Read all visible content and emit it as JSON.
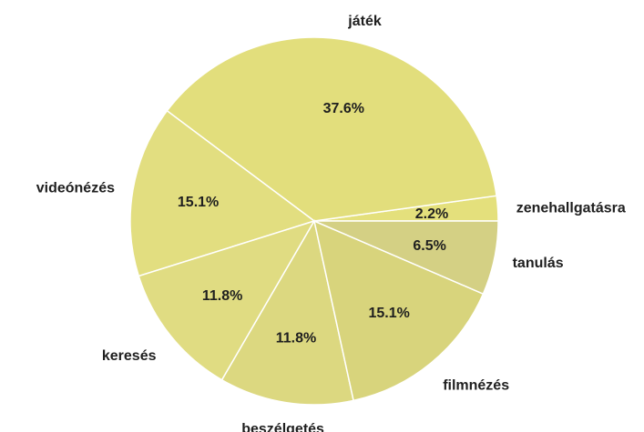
{
  "chart_data": {
    "type": "pie",
    "title": "",
    "start_angle_deg": 90,
    "direction": "clockwise",
    "slice_border_color": "#ffffff",
    "slices": [
      {
        "label": "zenehallgatásra",
        "value": 2.2,
        "percent_label": "2.2%",
        "color": "#e4e07c"
      },
      {
        "label": "játék",
        "value": 37.6,
        "percent_label": "37.6%",
        "color": "#e2de7c"
      },
      {
        "label": "videónézés",
        "value": 15.1,
        "percent_label": "15.1%",
        "color": "#e2de80"
      },
      {
        "label": "keresés",
        "value": 11.8,
        "percent_label": "11.8%",
        "color": "#e0dc82"
      },
      {
        "label": "beszélgetés",
        "value": 11.8,
        "percent_label": "11.8%",
        "color": "#dcd880"
      },
      {
        "label": "filmnézés",
        "value": 15.1,
        "percent_label": "15.1%",
        "color": "#d8d47c"
      },
      {
        "label": "tanulás",
        "value": 6.5,
        "percent_label": "6.5%",
        "color": "#d4d084"
      }
    ]
  }
}
